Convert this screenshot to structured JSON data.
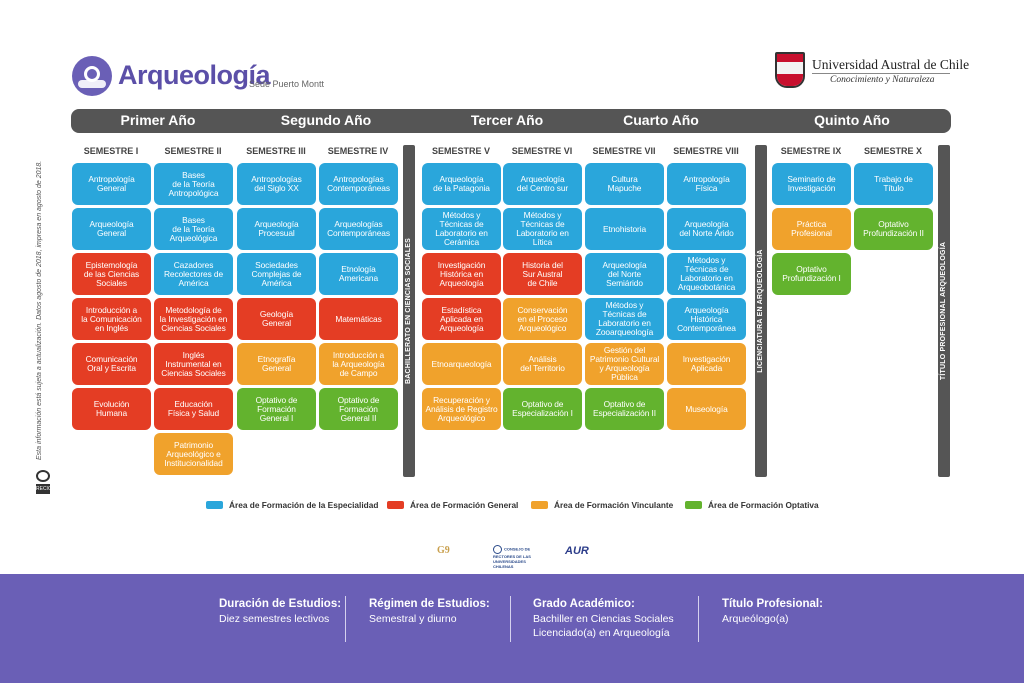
{
  "header": {
    "title": "Arqueología",
    "sede": "Sede Puerto Montt",
    "university_name": "Universidad Austral de Chile",
    "university_tagline": "Conocimiento y Naturaleza"
  },
  "sidenote": "Esta información está sujeta a actualización. Datos agosto de 2018, impresa en agosto de 2018.",
  "years": [
    "Primer Año",
    "Segundo Año",
    "Tercer Año",
    "Cuarto Año",
    "Quinto Año"
  ],
  "semesters": [
    "SEMESTRE I",
    "SEMESTRE II",
    "SEMESTRE III",
    "SEMESTRE IV",
    "SEMESTRE V",
    "SEMESTRE VI",
    "SEMESTRE VII",
    "SEMESTRE VIII",
    "SEMESTRE IX",
    "SEMESTRE X"
  ],
  "milestones": [
    "BACHILLERATO EN CIENCIAS SOCIALES",
    "LICENCIATURA EN ARQUEOLOGÍA",
    "TÍTULO PROFESIONAL ARQUEOLOGÍA"
  ],
  "colors": {
    "especialidad": "#2aa6db",
    "general": "#e43d24",
    "vinculante": "#f0a22c",
    "optativa": "#63b32e",
    "brand": "#6a5fb6"
  },
  "courses": [
    [
      {
        "name": "Antropología\nGeneral",
        "area": "especialidad"
      },
      {
        "name": "Arqueología\nGeneral",
        "area": "especialidad"
      },
      {
        "name": "Epistemología\nde las Ciencias\nSociales",
        "area": "general"
      },
      {
        "name": "Introducción a\nla Comunicación\nen Inglés",
        "area": "general"
      },
      {
        "name": "Comunicación\nOral y Escrita",
        "area": "general"
      },
      {
        "name": "Evolución\nHumana",
        "area": "general"
      }
    ],
    [
      {
        "name": "Bases\nde la Teoría\nAntropológica",
        "area": "especialidad"
      },
      {
        "name": "Bases\nde la Teoría\nArqueológica",
        "area": "especialidad"
      },
      {
        "name": "Cazadores\nRecolectores de\nAmérica",
        "area": "especialidad"
      },
      {
        "name": "Metodología de\nla Investigación en\nCiencias Sociales",
        "area": "general"
      },
      {
        "name": "Inglés\nInstrumental en\nCiencias Sociales",
        "area": "general"
      },
      {
        "name": "Educación\nFísica y Salud",
        "area": "general"
      },
      {
        "name": "Patrimonio\nArqueológico e\nInstitucionalidad",
        "area": "vinculante"
      }
    ],
    [
      {
        "name": "Antropologías\ndel Siglo XX",
        "area": "especialidad"
      },
      {
        "name": "Arqueología\nProcesual",
        "area": "especialidad"
      },
      {
        "name": "Sociedades\nComplejas de\nAmérica",
        "area": "especialidad"
      },
      {
        "name": "Geología\nGeneral",
        "area": "general"
      },
      {
        "name": "Etnografía\nGeneral",
        "area": "vinculante"
      },
      {
        "name": "Optativo de\nFormación\nGeneral I",
        "area": "optativa"
      }
    ],
    [
      {
        "name": "Antropologías\nContemporáneas",
        "area": "especialidad"
      },
      {
        "name": "Arqueologías\nContemporáneas",
        "area": "especialidad"
      },
      {
        "name": "Etnología\nAmericana",
        "area": "especialidad"
      },
      {
        "name": "Matemáticas",
        "area": "general"
      },
      {
        "name": "Introducción a\nla Arqueología\nde Campo",
        "area": "vinculante"
      },
      {
        "name": "Optativo de\nFormación\nGeneral II",
        "area": "optativa"
      }
    ],
    [
      {
        "name": "Arqueología\nde la Patagonia",
        "area": "especialidad"
      },
      {
        "name": "Métodos y\nTécnicas de\nLaboratorio en\nCerámica",
        "area": "especialidad"
      },
      {
        "name": "Investigación\nHistórica en\nArqueología",
        "area": "general"
      },
      {
        "name": "Estadística\nAplicada en\nArqueología",
        "area": "general"
      },
      {
        "name": "Etnoarqueología",
        "area": "vinculante"
      },
      {
        "name": "Recuperación y\nAnálisis de Registro\nArqueológico",
        "area": "vinculante"
      }
    ],
    [
      {
        "name": "Arqueología\ndel Centro sur",
        "area": "especialidad"
      },
      {
        "name": "Métodos y\nTécnicas de\nLaboratorio en\nLítica",
        "area": "especialidad"
      },
      {
        "name": "Historia del\nSur Austral\nde Chile",
        "area": "general"
      },
      {
        "name": "Conservación\nen el Proceso\nArqueológico",
        "area": "vinculante"
      },
      {
        "name": "Análisis\ndel Territorio",
        "area": "vinculante"
      },
      {
        "name": "Optativo de\nEspecialización I",
        "area": "optativa"
      }
    ],
    [
      {
        "name": "Cultura\nMapuche",
        "area": "especialidad"
      },
      {
        "name": "Etnohistoria",
        "area": "especialidad"
      },
      {
        "name": "Arqueología\ndel Norte\nSemiárido",
        "area": "especialidad"
      },
      {
        "name": "Métodos y\nTécnicas de\nLaboratorio en\nZooarqueología",
        "area": "especialidad"
      },
      {
        "name": "Gestión del\nPatrimonio Cultural\ny Arqueología\nPública",
        "area": "vinculante"
      },
      {
        "name": "Optativo de\nEspecialización II",
        "area": "optativa"
      }
    ],
    [
      {
        "name": "Antropología\nFísica",
        "area": "especialidad"
      },
      {
        "name": "Arqueología\ndel Norte Árido",
        "area": "especialidad"
      },
      {
        "name": "Métodos y\nTécnicas de\nLaboratorio en\nArqueobotánica",
        "area": "especialidad"
      },
      {
        "name": "Arqueología\nHistórica\nContemporánea",
        "area": "especialidad"
      },
      {
        "name": "Investigación\nAplicada",
        "area": "vinculante"
      },
      {
        "name": "Museología",
        "area": "vinculante"
      }
    ],
    [
      {
        "name": "Seminario de\nInvestigación",
        "area": "especialidad"
      },
      {
        "name": "Práctica\nProfesional",
        "area": "vinculante"
      },
      {
        "name": "Optativo\nProfundización I",
        "area": "optativa"
      }
    ],
    [
      {
        "name": "Trabajo de\nTítulo",
        "area": "especialidad"
      },
      {
        "name": "Optativo\nProfundización II",
        "area": "optativa"
      }
    ]
  ],
  "legend": [
    {
      "label": "Área de Formación de la Especialidad",
      "color": "#2aa6db"
    },
    {
      "label": "Área de Formación General",
      "color": "#e43d24"
    },
    {
      "label": "Área de Formación Vinculante",
      "color": "#f0a22c"
    },
    {
      "label": "Área de Formación Optativa",
      "color": "#63b32e"
    }
  ],
  "partners": {
    "g9": "G9",
    "consejo": "CONSEJO DE RECTORES DE LAS UNIVERSIDADES CHILENAS",
    "aur": "AUR"
  },
  "footer": {
    "duracion": {
      "label": "Duración de Estudios:",
      "value": "Diez semestres lectivos"
    },
    "regimen": {
      "label": "Régimen de Estudios:",
      "value": "Semestral y diurno"
    },
    "grado": {
      "label": "Grado Académico:",
      "value1": "Bachiller en Ciencias Sociales",
      "value2": "Licenciado(a) en Arqueología"
    },
    "titulo": {
      "label": "Título Profesional:",
      "value": "Arqueólogo(a)"
    }
  }
}
